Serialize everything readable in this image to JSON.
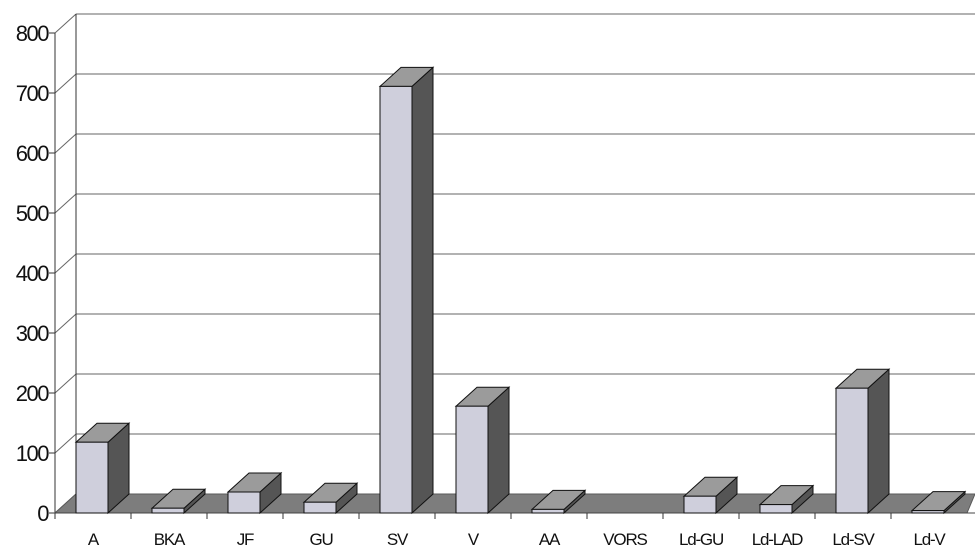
{
  "chart_data": {
    "type": "bar",
    "style": "3d-column",
    "title": "",
    "xlabel": "",
    "ylabel": "",
    "categories": [
      "A",
      "BKA",
      "JF",
      "GU",
      "SV",
      "V",
      "AA",
      "VORS",
      "Ld-GU",
      "Ld-LAD",
      "Ld-SV",
      "Ld-V"
    ],
    "values": [
      118,
      8,
      35,
      18,
      711,
      178,
      6,
      0,
      28,
      14,
      208,
      4
    ],
    "ylim": [
      0,
      800
    ],
    "yticks": [
      "0",
      "100",
      "200",
      "300",
      "400",
      "500",
      "600",
      "700",
      "800"
    ],
    "grid": true,
    "legend": "none",
    "colors": {
      "bar_front": "#cfcfdc",
      "bar_top": "#9b9b9b",
      "bar_side": "#555555",
      "floor": "#7d7d7d",
      "grid": "#666666",
      "axis": "#333333"
    }
  }
}
